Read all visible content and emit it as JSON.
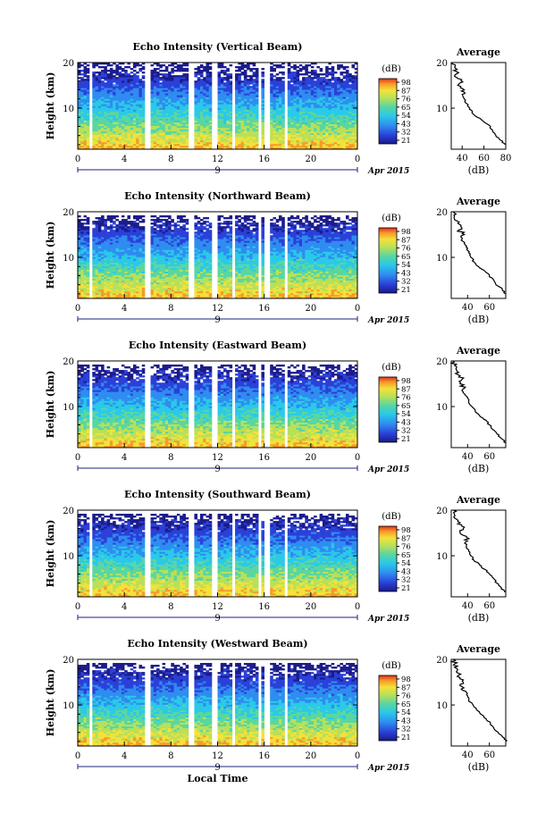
{
  "chart_data": [
    {
      "type": "heatmap",
      "title": "Echo Intensity (Vertical Beam)",
      "ylabel": "Height (km)",
      "x_ticks": [
        "0",
        "4",
        "8",
        "12",
        "16",
        "20",
        "0"
      ],
      "y_ticks": [
        "10",
        "20"
      ],
      "date_label": "9",
      "month_label": "Apr 2015",
      "colorbar": {
        "unit": "(dB)",
        "ticks": [
          "98",
          "87",
          "76",
          "65",
          "54",
          "43",
          "32",
          "21"
        ]
      },
      "average": {
        "title": "Average",
        "xlabel": "(dB)",
        "x_ticks": [
          "40",
          "60",
          "80"
        ],
        "y_ticks": [
          "10",
          "20"
        ],
        "xlim": [
          30,
          80
        ],
        "profile": [
          [
            2,
            80
          ],
          [
            3,
            75
          ],
          [
            4,
            71
          ],
          [
            5,
            68
          ],
          [
            6,
            66
          ],
          [
            7,
            60
          ],
          [
            8,
            54
          ],
          [
            9,
            49
          ],
          [
            10,
            47
          ],
          [
            11,
            44
          ],
          [
            12,
            42
          ],
          [
            13,
            40
          ],
          [
            14,
            42
          ],
          [
            15,
            36
          ],
          [
            16,
            39
          ],
          [
            17,
            33
          ],
          [
            18,
            35
          ],
          [
            19,
            33
          ],
          [
            20,
            31
          ]
        ]
      }
    },
    {
      "type": "heatmap",
      "title": "Echo Intensity (Northward Beam)",
      "ylabel": "Height (km)",
      "x_ticks": [
        "0",
        "4",
        "8",
        "12",
        "16",
        "20",
        "0"
      ],
      "y_ticks": [
        "10",
        "20"
      ],
      "date_label": "9",
      "month_label": "Apr 2015",
      "colorbar": {
        "unit": "(dB)",
        "ticks": [
          "98",
          "87",
          "76",
          "65",
          "54",
          "43",
          "32",
          "21"
        ]
      },
      "average": {
        "title": "Average",
        "xlabel": "(dB)",
        "x_ticks": [
          "40",
          "60"
        ],
        "y_ticks": [
          "10",
          "20"
        ],
        "xlim": [
          25,
          75
        ],
        "profile": [
          [
            2,
            75
          ],
          [
            3,
            72
          ],
          [
            4,
            66
          ],
          [
            5,
            64
          ],
          [
            6,
            60
          ],
          [
            7,
            56
          ],
          [
            8,
            50
          ],
          [
            9,
            46
          ],
          [
            10,
            43
          ],
          [
            11,
            41
          ],
          [
            12,
            40
          ],
          [
            13,
            37
          ],
          [
            14,
            35
          ],
          [
            15,
            37
          ],
          [
            16,
            32
          ],
          [
            17,
            34
          ],
          [
            18,
            30
          ],
          [
            19,
            28
          ],
          [
            20,
            27
          ]
        ]
      }
    },
    {
      "type": "heatmap",
      "title": "Echo Intensity (Eastward Beam)",
      "ylabel": "Height (km)",
      "x_ticks": [
        "0",
        "4",
        "8",
        "12",
        "16",
        "20",
        "0"
      ],
      "y_ticks": [
        "10",
        "20"
      ],
      "date_label": "9",
      "month_label": "Apr 2015",
      "colorbar": {
        "unit": "(dB)",
        "ticks": [
          "98",
          "87",
          "76",
          "65",
          "54",
          "43",
          "32",
          "21"
        ]
      },
      "average": {
        "title": "Average",
        "xlabel": "(dB)",
        "x_ticks": [
          "40",
          "60"
        ],
        "y_ticks": [
          "10",
          "20"
        ],
        "xlim": [
          25,
          75
        ],
        "profile": [
          [
            2,
            75
          ],
          [
            3,
            71
          ],
          [
            4,
            67
          ],
          [
            5,
            63
          ],
          [
            6,
            60
          ],
          [
            7,
            57
          ],
          [
            8,
            51
          ],
          [
            9,
            47
          ],
          [
            10,
            44
          ],
          [
            11,
            41
          ],
          [
            12,
            40
          ],
          [
            13,
            36
          ],
          [
            14,
            37
          ],
          [
            15,
            33
          ],
          [
            16,
            35
          ],
          [
            17,
            31
          ],
          [
            18,
            30
          ],
          [
            19,
            28
          ],
          [
            20,
            27
          ]
        ]
      }
    },
    {
      "type": "heatmap",
      "title": "Echo Intensity (Southward Beam)",
      "ylabel": "Height (km)",
      "x_ticks": [
        "0",
        "4",
        "8",
        "12",
        "16",
        "20",
        "0"
      ],
      "y_ticks": [
        "10",
        "20"
      ],
      "date_label": "9",
      "month_label": "Apr 2015",
      "colorbar": {
        "unit": "(dB)",
        "ticks": [
          "98",
          "87",
          "76",
          "65",
          "54",
          "43",
          "32",
          "21"
        ]
      },
      "average": {
        "title": "Average",
        "xlabel": "(dB)",
        "x_ticks": [
          "40",
          "60"
        ],
        "y_ticks": [
          "10",
          "20"
        ],
        "xlim": [
          25,
          75
        ],
        "profile": [
          [
            2,
            74
          ],
          [
            3,
            71
          ],
          [
            4,
            67
          ],
          [
            5,
            64
          ],
          [
            6,
            60
          ],
          [
            7,
            56
          ],
          [
            8,
            51
          ],
          [
            9,
            46
          ],
          [
            10,
            43
          ],
          [
            11,
            41
          ],
          [
            12,
            39
          ],
          [
            13,
            38
          ],
          [
            14,
            39
          ],
          [
            15,
            33
          ],
          [
            16,
            36
          ],
          [
            17,
            31
          ],
          [
            18,
            30
          ],
          [
            19,
            28
          ],
          [
            20,
            27
          ]
        ]
      }
    },
    {
      "type": "heatmap",
      "title": "Echo Intensity (Westward Beam)",
      "ylabel": "Height (km)",
      "x_ticks": [
        "0",
        "4",
        "8",
        "12",
        "16",
        "20",
        "0"
      ],
      "y_ticks": [
        "10",
        "20"
      ],
      "date_label": "9",
      "month_label": "Apr 2015",
      "xlabel": "Local Time",
      "colorbar": {
        "unit": "(dB)",
        "ticks": [
          "98",
          "87",
          "76",
          "65",
          "54",
          "43",
          "32",
          "21"
        ]
      },
      "average": {
        "title": "Average",
        "xlabel": "(dB)",
        "x_ticks": [
          "40",
          "60"
        ],
        "y_ticks": [
          "10",
          "20"
        ],
        "xlim": [
          25,
          75
        ],
        "profile": [
          [
            2,
            76
          ],
          [
            3,
            72
          ],
          [
            4,
            68
          ],
          [
            5,
            64
          ],
          [
            6,
            61
          ],
          [
            7,
            57
          ],
          [
            8,
            52
          ],
          [
            9,
            48
          ],
          [
            10,
            45
          ],
          [
            11,
            41
          ],
          [
            12,
            40
          ],
          [
            13,
            38
          ],
          [
            14,
            35
          ],
          [
            15,
            36
          ],
          [
            16,
            33
          ],
          [
            17,
            31
          ],
          [
            18,
            30
          ],
          [
            19,
            28
          ],
          [
            20,
            27
          ]
        ]
      }
    }
  ]
}
